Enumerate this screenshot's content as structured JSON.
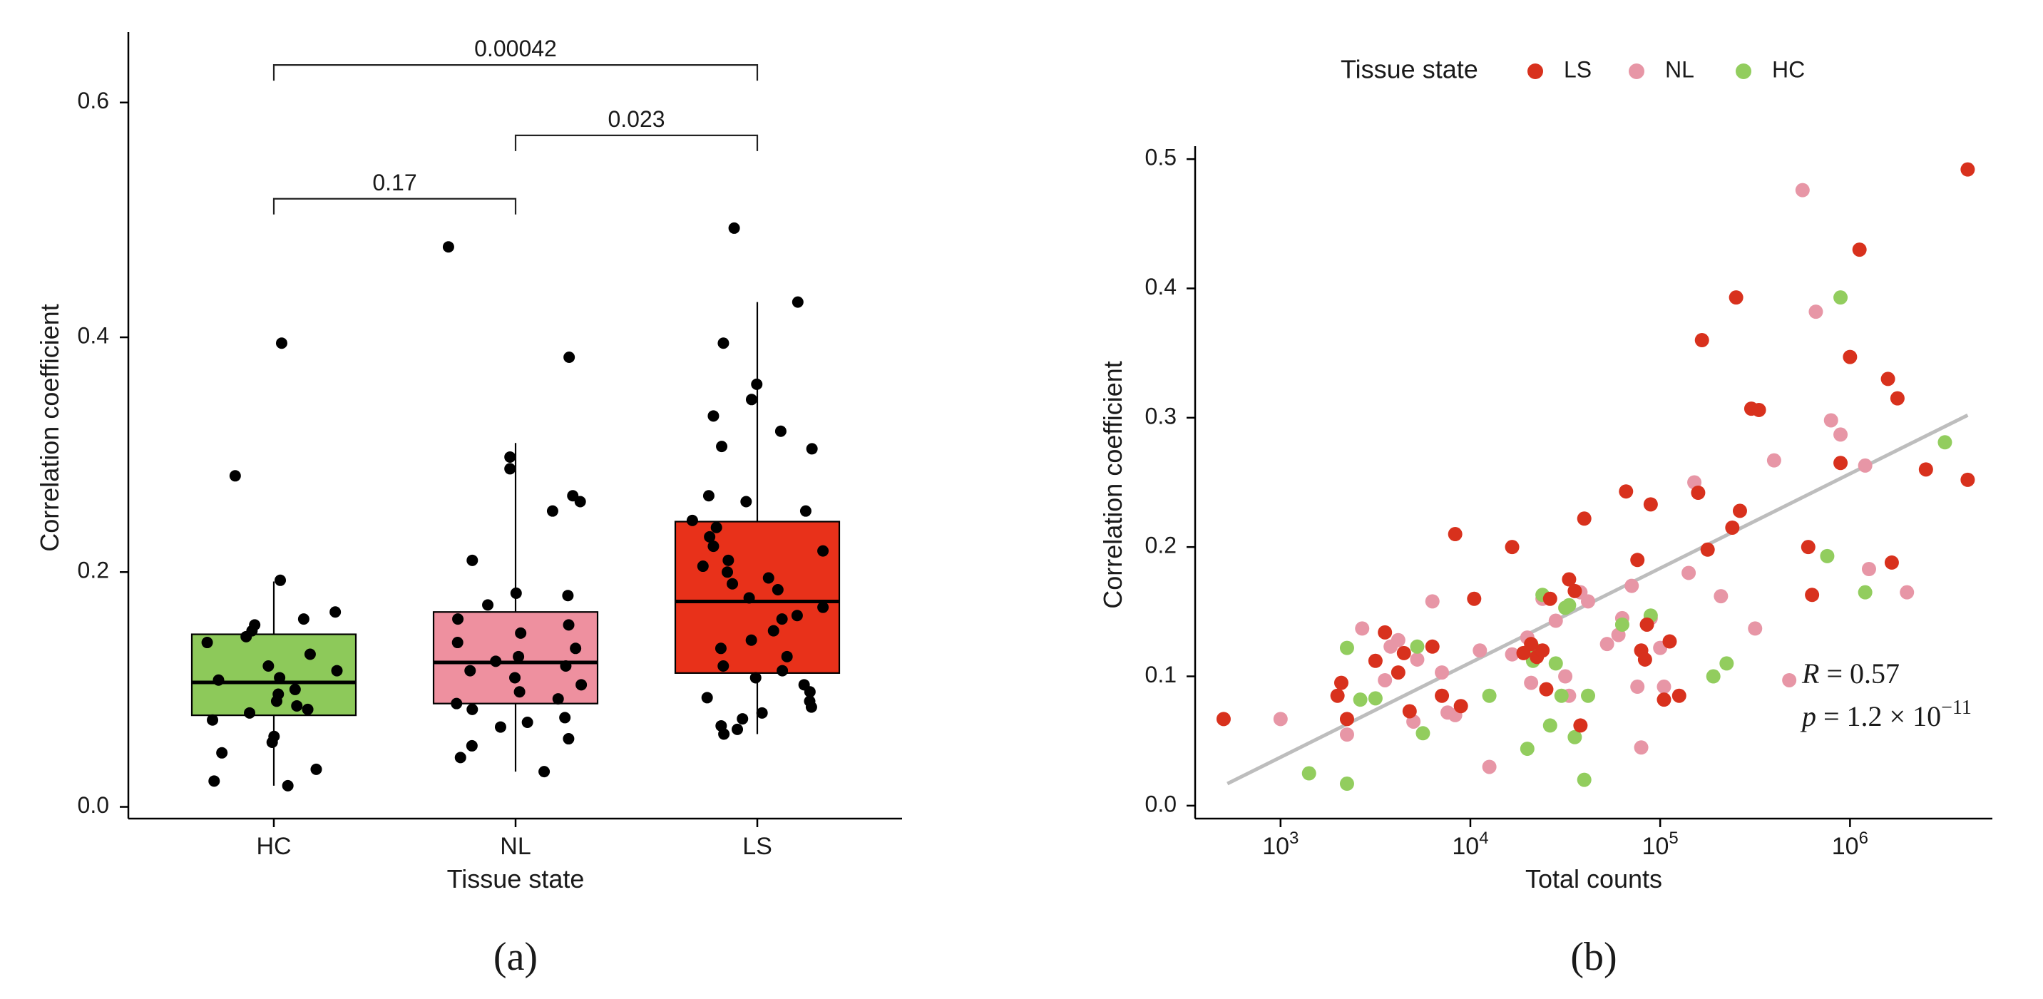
{
  "chart_data": [
    {
      "type": "box",
      "panel_label": "(a)",
      "xlabel": "Tissue state",
      "ylabel": "Correlation coefficient",
      "ylim": [
        -0.01,
        0.66
      ],
      "yticks": [
        0.0,
        0.2,
        0.4,
        0.6
      ],
      "ytick_labels": [
        "0.0",
        "0.2",
        "0.4",
        "0.6"
      ],
      "categories": [
        "HC",
        "NL",
        "LS"
      ],
      "colors": {
        "HC": "#8dc95a",
        "NL": "#ee909f",
        "LS": "#e8311a"
      },
      "boxes": [
        {
          "group": "HC",
          "q1": 0.078,
          "median": 0.106,
          "q3": 0.147,
          "whisker_low": 0.018,
          "whisker_high": 0.192
        },
        {
          "group": "NL",
          "q1": 0.088,
          "median": 0.123,
          "q3": 0.166,
          "whisker_low": 0.03,
          "whisker_high": 0.31
        },
        {
          "group": "LS",
          "q1": 0.114,
          "median": 0.175,
          "q3": 0.243,
          "whisker_low": 0.062,
          "whisker_high": 0.43
        }
      ],
      "points": {
        "HC": [
          0.395,
          0.282,
          0.193,
          0.166,
          0.16,
          0.155,
          0.15,
          0.145,
          0.14,
          0.13,
          0.12,
          0.116,
          0.11,
          0.108,
          0.1,
          0.096,
          0.09,
          0.086,
          0.083,
          0.08,
          0.074,
          0.06,
          0.055,
          0.046,
          0.032,
          0.022,
          0.018
        ],
        "NL": [
          0.477,
          0.383,
          0.298,
          0.288,
          0.265,
          0.26,
          0.252,
          0.21,
          0.182,
          0.18,
          0.172,
          0.16,
          0.155,
          0.148,
          0.14,
          0.135,
          0.128,
          0.124,
          0.12,
          0.116,
          0.11,
          0.104,
          0.098,
          0.092,
          0.088,
          0.083,
          0.076,
          0.072,
          0.068,
          0.058,
          0.052,
          0.042,
          0.03
        ],
        "LS": [
          0.493,
          0.43,
          0.395,
          0.36,
          0.347,
          0.333,
          0.32,
          0.307,
          0.305,
          0.265,
          0.26,
          0.252,
          0.244,
          0.238,
          0.23,
          0.222,
          0.218,
          0.21,
          0.205,
          0.2,
          0.195,
          0.19,
          0.185,
          0.178,
          0.17,
          0.163,
          0.16,
          0.15,
          0.142,
          0.135,
          0.128,
          0.12,
          0.116,
          0.11,
          0.104,
          0.098,
          0.093,
          0.09,
          0.085,
          0.08,
          0.075,
          0.069,
          0.066,
          0.062
        ]
      },
      "comparisons": [
        {
          "from": "HC",
          "to": "LS",
          "label": "0.00042",
          "y": 0.632
        },
        {
          "from": "NL",
          "to": "LS",
          "label": "0.023",
          "y": 0.572
        },
        {
          "from": "HC",
          "to": "NL",
          "label": "0.17",
          "y": 0.518
        }
      ]
    },
    {
      "type": "scatter",
      "panel_label": "(b)",
      "xlabel": "Total counts",
      "ylabel": "Correlation coefficient",
      "x_scale": "log10",
      "xlim_log10": [
        2.55,
        6.75
      ],
      "ylim": [
        -0.01,
        0.51
      ],
      "yticks": [
        0.0,
        0.1,
        0.2,
        0.3,
        0.4,
        0.5
      ],
      "ytick_labels": [
        "0.0",
        "0.1",
        "0.2",
        "0.3",
        "0.4",
        "0.5"
      ],
      "xticks_log10": [
        3,
        4,
        5,
        6
      ],
      "xtick_base": "10",
      "xtick_exponents": [
        "3",
        "4",
        "5",
        "6"
      ],
      "legend": {
        "title": "Tissue state",
        "entries": [
          "LS",
          "NL",
          "HC"
        ],
        "position": "top"
      },
      "colors": {
        "LS": "#d8311d",
        "NL": "#e796a6",
        "HC": "#92cd5e"
      },
      "fit_line": {
        "x_log10": [
          2.72,
          6.62
        ],
        "y": [
          0.017,
          0.302
        ],
        "color": "#bdbdbd"
      },
      "annotation": {
        "r_label": "R",
        "r_value": "= 0.57",
        "p_label": "p",
        "p_value": "= 1.2 × 10",
        "p_exponent": "−11"
      },
      "series": [
        {
          "name": "LS",
          "points": [
            [
              2.7,
              0.067
            ],
            [
              3.3,
              0.085
            ],
            [
              3.32,
              0.095
            ],
            [
              3.35,
              0.067
            ],
            [
              3.5,
              0.112
            ],
            [
              3.55,
              0.134
            ],
            [
              3.62,
              0.103
            ],
            [
              3.65,
              0.118
            ],
            [
              3.68,
              0.073
            ],
            [
              3.8,
              0.123
            ],
            [
              3.85,
              0.085
            ],
            [
              3.92,
              0.21
            ],
            [
              3.95,
              0.077
            ],
            [
              4.02,
              0.16
            ],
            [
              4.22,
              0.2
            ],
            [
              4.28,
              0.118
            ],
            [
              4.32,
              0.125
            ],
            [
              4.35,
              0.115
            ],
            [
              4.38,
              0.12
            ],
            [
              4.4,
              0.09
            ],
            [
              4.42,
              0.16
            ],
            [
              4.52,
              0.175
            ],
            [
              4.55,
              0.166
            ],
            [
              4.58,
              0.062
            ],
            [
              4.6,
              0.222
            ],
            [
              4.82,
              0.243
            ],
            [
              4.88,
              0.19
            ],
            [
              4.9,
              0.12
            ],
            [
              4.92,
              0.113
            ],
            [
              4.93,
              0.14
            ],
            [
              4.95,
              0.233
            ],
            [
              5.02,
              0.082
            ],
            [
              5.05,
              0.127
            ],
            [
              5.1,
              0.085
            ],
            [
              5.2,
              0.242
            ],
            [
              5.22,
              0.36
            ],
            [
              5.25,
              0.198
            ],
            [
              5.38,
              0.215
            ],
            [
              5.4,
              0.393
            ],
            [
              5.42,
              0.228
            ],
            [
              5.48,
              0.307
            ],
            [
              5.52,
              0.306
            ],
            [
              5.78,
              0.2
            ],
            [
              5.8,
              0.163
            ],
            [
              5.95,
              0.265
            ],
            [
              6.0,
              0.347
            ],
            [
              6.05,
              0.43
            ],
            [
              6.2,
              0.33
            ],
            [
              6.22,
              0.188
            ],
            [
              6.25,
              0.315
            ],
            [
              6.4,
              0.26
            ],
            [
              6.62,
              0.492
            ],
            [
              6.62,
              0.252
            ]
          ]
        },
        {
          "name": "NL",
          "points": [
            [
              3.0,
              0.067
            ],
            [
              3.35,
              0.055
            ],
            [
              3.43,
              0.137
            ],
            [
              3.55,
              0.097
            ],
            [
              3.58,
              0.123
            ],
            [
              3.62,
              0.128
            ],
            [
              3.7,
              0.065
            ],
            [
              3.72,
              0.113
            ],
            [
              3.8,
              0.158
            ],
            [
              3.85,
              0.103
            ],
            [
              3.88,
              0.072
            ],
            [
              3.92,
              0.07
            ],
            [
              4.05,
              0.12
            ],
            [
              4.1,
              0.03
            ],
            [
              4.22,
              0.117
            ],
            [
              4.3,
              0.13
            ],
            [
              4.32,
              0.095
            ],
            [
              4.38,
              0.16
            ],
            [
              4.45,
              0.143
            ],
            [
              4.5,
              0.1
            ],
            [
              4.52,
              0.085
            ],
            [
              4.58,
              0.165
            ],
            [
              4.62,
              0.158
            ],
            [
              4.72,
              0.125
            ],
            [
              4.78,
              0.132
            ],
            [
              4.8,
              0.145
            ],
            [
              4.85,
              0.17
            ],
            [
              4.88,
              0.092
            ],
            [
              4.9,
              0.045
            ],
            [
              4.95,
              0.145
            ],
            [
              5.0,
              0.122
            ],
            [
              5.02,
              0.092
            ],
            [
              5.15,
              0.18
            ],
            [
              5.18,
              0.25
            ],
            [
              5.32,
              0.162
            ],
            [
              5.5,
              0.137
            ],
            [
              5.6,
              0.267
            ],
            [
              5.68,
              0.097
            ],
            [
              5.75,
              0.476
            ],
            [
              5.82,
              0.382
            ],
            [
              5.9,
              0.298
            ],
            [
              5.95,
              0.287
            ],
            [
              6.08,
              0.263
            ],
            [
              6.1,
              0.183
            ],
            [
              6.3,
              0.165
            ]
          ]
        },
        {
          "name": "HC",
          "points": [
            [
              3.15,
              0.025
            ],
            [
              3.35,
              0.122
            ],
            [
              3.35,
              0.017
            ],
            [
              3.42,
              0.082
            ],
            [
              3.5,
              0.083
            ],
            [
              3.72,
              0.123
            ],
            [
              3.75,
              0.056
            ],
            [
              4.1,
              0.085
            ],
            [
              4.3,
              0.044
            ],
            [
              4.33,
              0.112
            ],
            [
              4.35,
              0.12
            ],
            [
              4.38,
              0.163
            ],
            [
              4.42,
              0.062
            ],
            [
              4.45,
              0.11
            ],
            [
              4.48,
              0.085
            ],
            [
              4.5,
              0.153
            ],
            [
              4.52,
              0.155
            ],
            [
              4.55,
              0.053
            ],
            [
              4.6,
              0.02
            ],
            [
              4.62,
              0.085
            ],
            [
              4.8,
              0.14
            ],
            [
              4.95,
              0.147
            ],
            [
              5.28,
              0.1
            ],
            [
              5.35,
              0.11
            ],
            [
              5.88,
              0.193
            ],
            [
              5.95,
              0.393
            ],
            [
              6.08,
              0.165
            ],
            [
              6.5,
              0.281
            ]
          ]
        }
      ]
    }
  ]
}
